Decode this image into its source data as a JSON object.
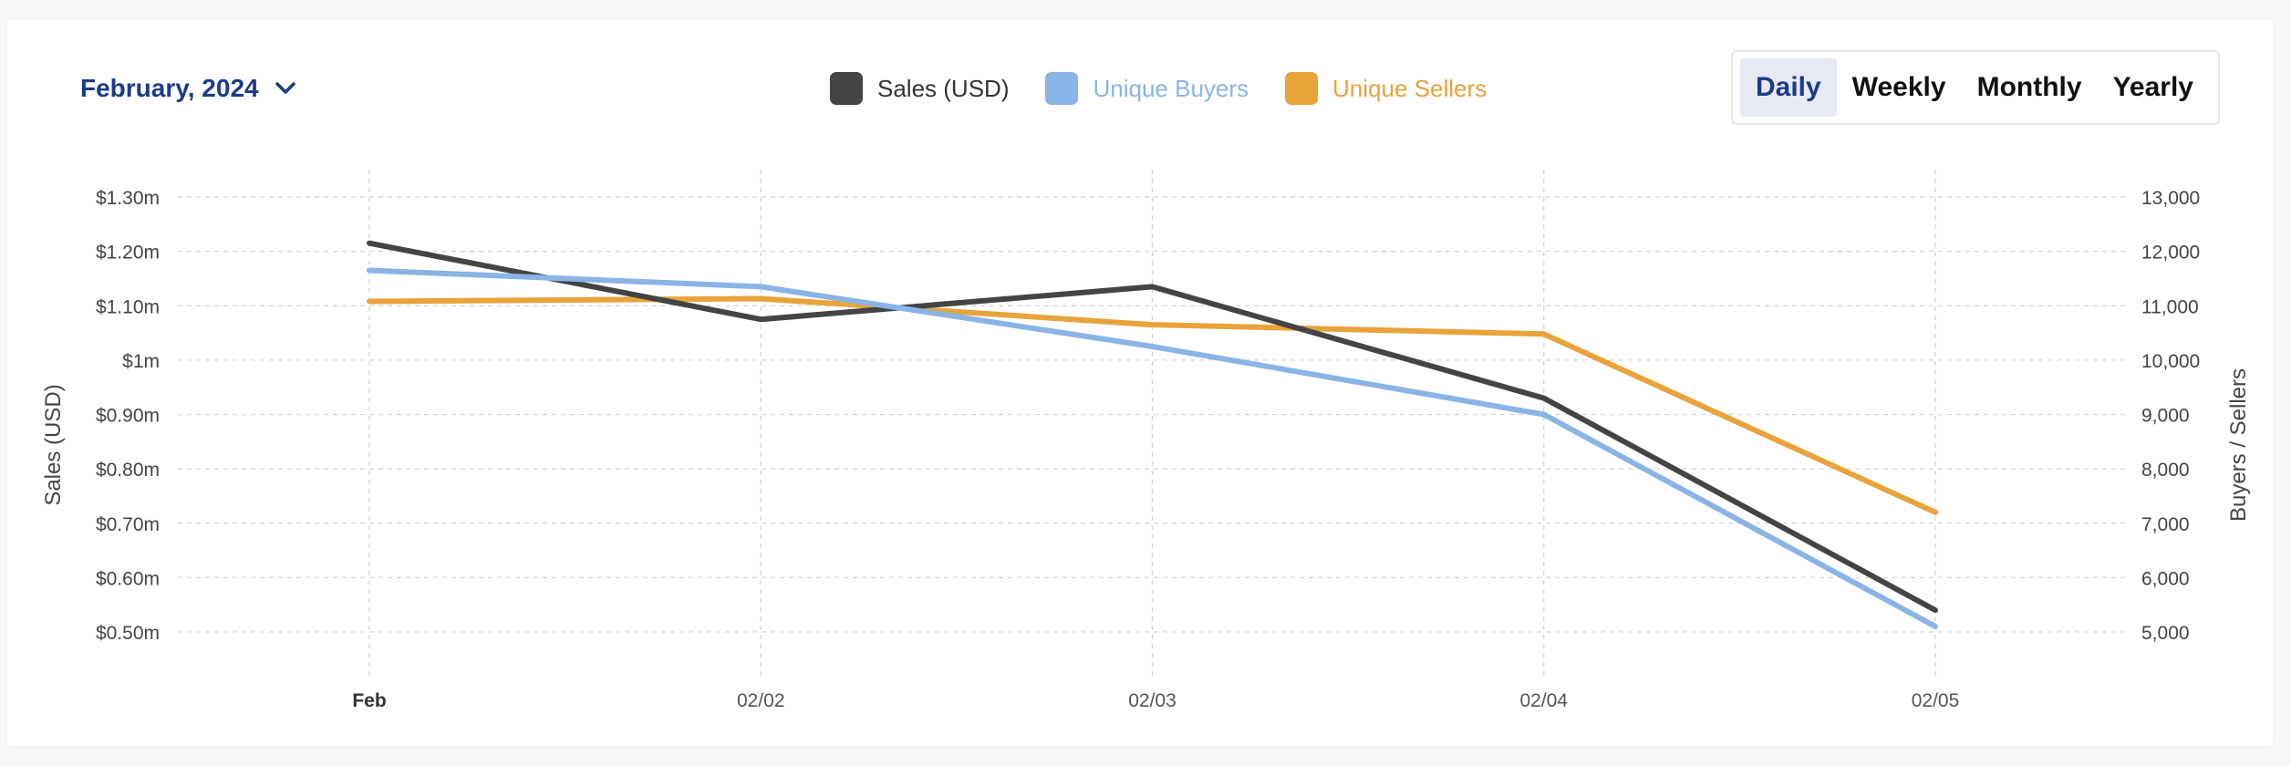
{
  "period_selector": {
    "month_label": "February, 2024",
    "options": [
      "Daily",
      "Weekly",
      "Monthly",
      "Yearly"
    ],
    "active": "Daily"
  },
  "icons": {
    "month_dropdown": "chevron-down-icon"
  },
  "colors": {
    "brand": "#1c3b86",
    "sales": "#444444",
    "buyers": "#8ab4e6",
    "sellers": "#e8a33a",
    "grid": "#d4d4d4"
  },
  "chart_data": {
    "type": "line",
    "x": [
      "Feb",
      "02/02",
      "02/03",
      "02/04",
      "02/05"
    ],
    "series": [
      {
        "name": "Sales (USD)",
        "axis": "left",
        "values": [
          1.215,
          1.075,
          1.135,
          0.93,
          0.54
        ]
      },
      {
        "name": "Unique Buyers",
        "axis": "right",
        "values": [
          11650,
          11350,
          10250,
          9000,
          5100
        ]
      },
      {
        "name": "Unique Sellers",
        "axis": "right",
        "values": [
          11080,
          11130,
          10650,
          10480,
          7200
        ]
      }
    ],
    "y_left": {
      "label": "Sales (USD)",
      "ticks": [
        "$0.50m",
        "$0.60m",
        "$0.70m",
        "$0.80m",
        "$0.90m",
        "$1m",
        "$1.10m",
        "$1.20m",
        "$1.30m"
      ],
      "range": [
        0.5,
        1.3
      ]
    },
    "y_right": {
      "label": "Buyers / Sellers",
      "ticks": [
        "5,000",
        "6,000",
        "7,000",
        "8,000",
        "9,000",
        "10,000",
        "11,000",
        "12,000",
        "13,000"
      ],
      "range": [
        5000,
        13000
      ]
    },
    "grid": true,
    "legend": "top-center"
  }
}
